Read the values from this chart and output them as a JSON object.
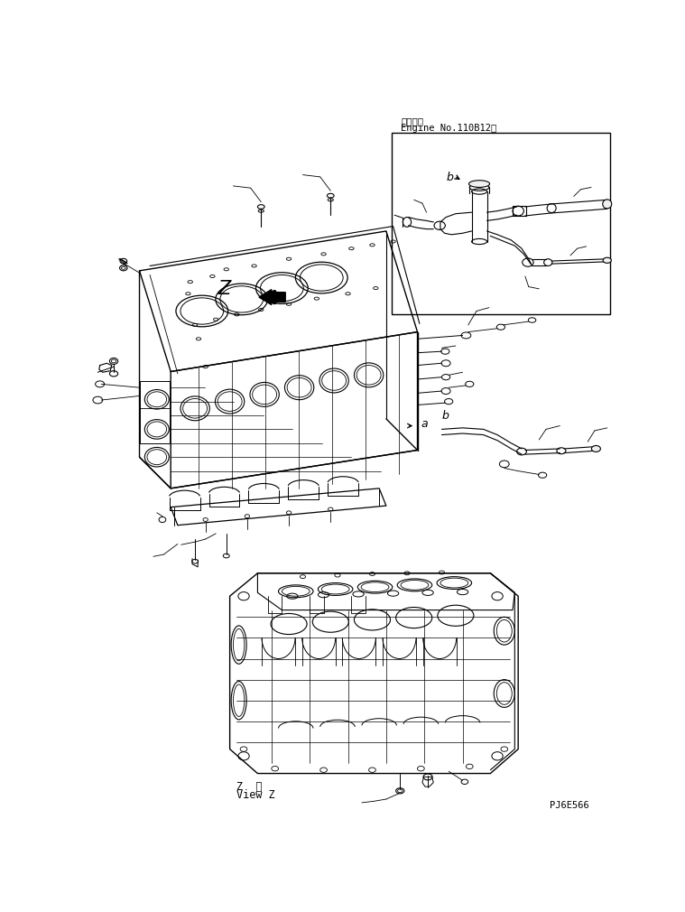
{
  "title_line1": "適用号機",
  "title_line2": "Engine No.110B12〜",
  "bottom_label1": "Z  視",
  "bottom_label2": "View Z",
  "part_code": "PJ6E566",
  "bg_color": "#ffffff",
  "line_color": "#000000",
  "fig_width": 7.59,
  "fig_height": 10.1,
  "dpi": 100,
  "label_a": "a",
  "label_b": "b",
  "label_z": "Z"
}
